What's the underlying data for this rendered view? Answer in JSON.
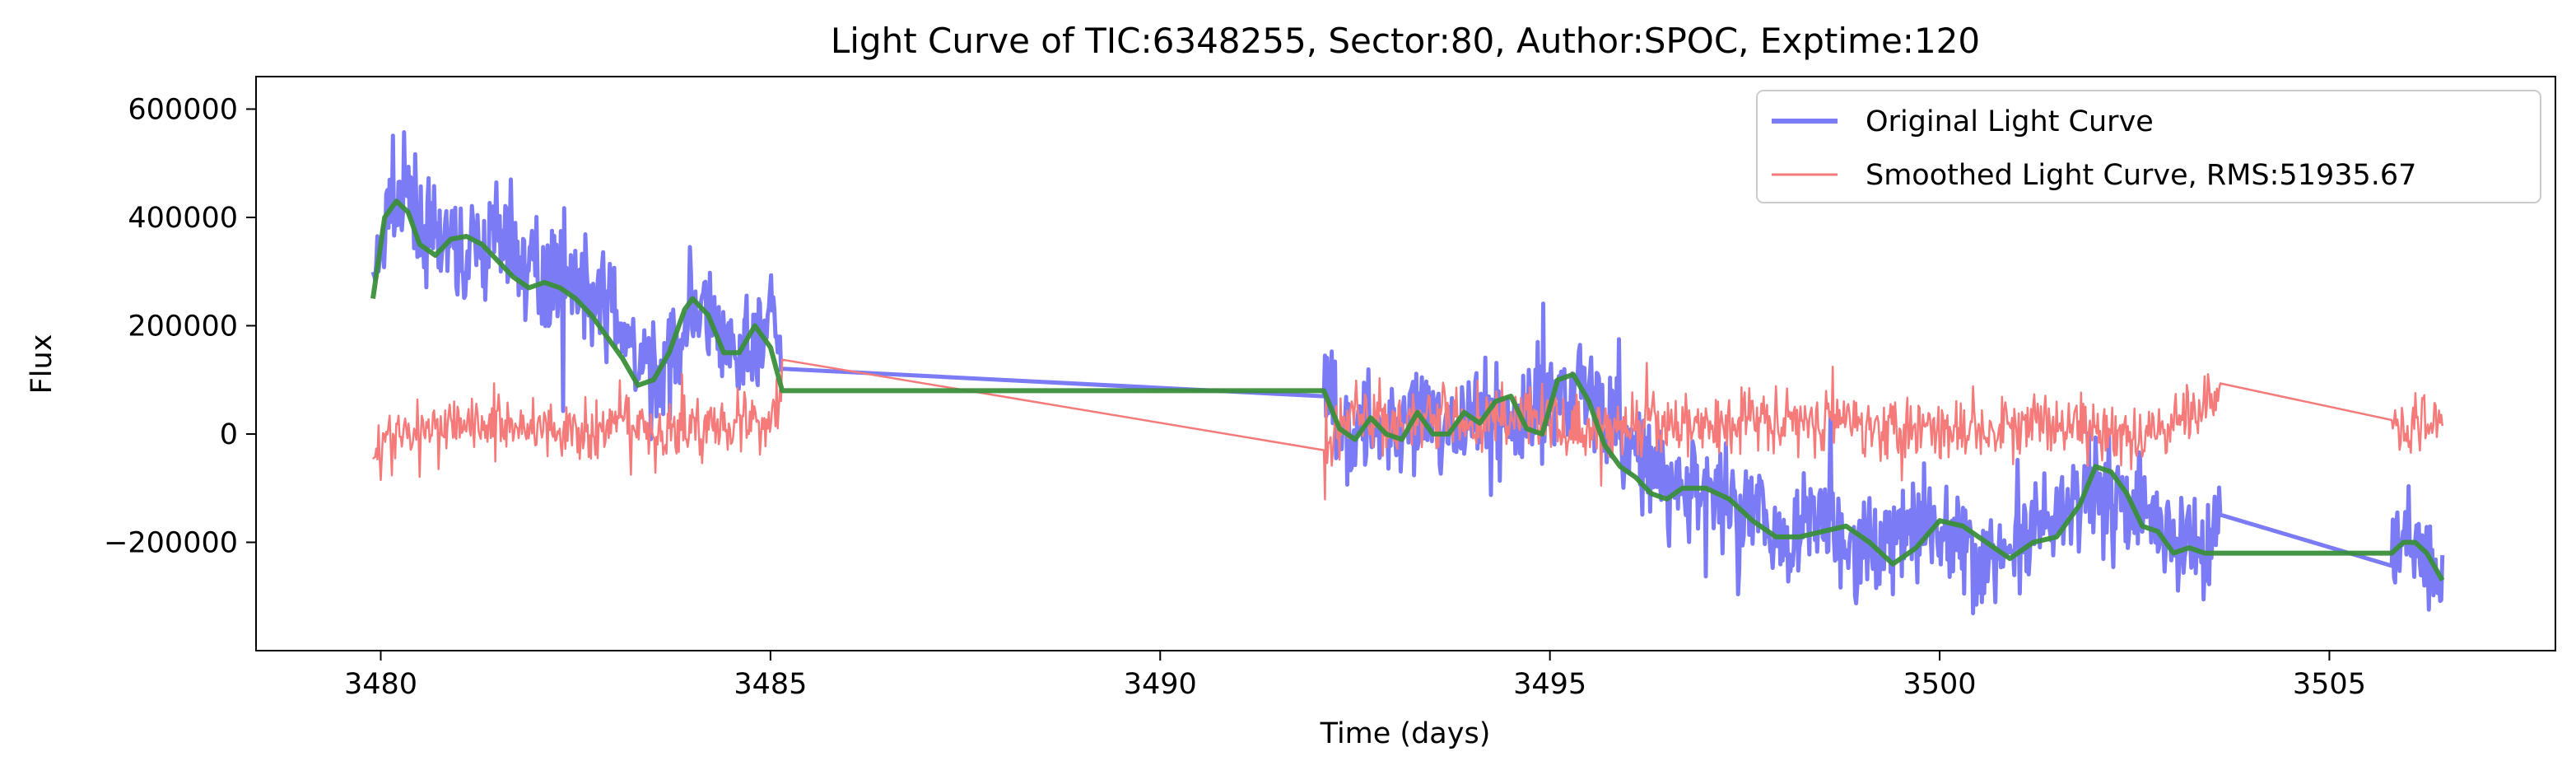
{
  "chart_data": {
    "type": "line",
    "title": "Light Curve of TIC:6348255, Sector:80, Author:SPOC, Exptime:120",
    "xlabel": "Time (days)",
    "ylabel": "Flux",
    "xlim": [
      3478.4,
      3507.9
    ],
    "ylim": [
      -400000,
      660000
    ],
    "x_ticks": [
      3480,
      3485,
      3490,
      3495,
      3500,
      3505
    ],
    "y_ticks": [
      -200000,
      0,
      200000,
      400000,
      600000
    ],
    "y_tick_labels": [
      "−200000",
      "0",
      "200000",
      "400000",
      "600000"
    ],
    "grid": false,
    "legend_position": "top-right",
    "segments": [
      [
        3479.9,
        3485.15
      ],
      [
        3492.1,
        3503.6
      ],
      [
        3505.8,
        3506.45
      ]
    ],
    "series": [
      {
        "name": "Original Light Curve",
        "color": "#7b7bf5",
        "x": [
          3479.9,
          3480.1,
          3480.3,
          3480.6,
          3481.0,
          3481.5,
          3482.0,
          3482.5,
          3483.0,
          3483.3,
          3483.6,
          3484.0,
          3484.3,
          3484.6,
          3485.0,
          3485.15,
          3492.1,
          3492.5,
          3493.0,
          3493.5,
          3494.0,
          3494.5,
          3495.0,
          3495.4,
          3495.8,
          3496.2,
          3496.6,
          3497.0,
          3497.5,
          3498.0,
          3498.5,
          3499.0,
          3499.5,
          3500.0,
          3500.5,
          3501.0,
          3501.5,
          3502.0,
          3502.3,
          3502.6,
          3503.0,
          3503.4,
          3503.6,
          3505.8,
          3506.1,
          3506.45
        ],
        "y": [
          250000,
          420000,
          430000,
          370000,
          330000,
          360000,
          300000,
          280000,
          230000,
          120000,
          100000,
          240000,
          180000,
          130000,
          190000,
          180000,
          80000,
          0,
          30000,
          10000,
          30000,
          20000,
          60000,
          110000,
          10000,
          -70000,
          -100000,
          -100000,
          -140000,
          -190000,
          -160000,
          -230000,
          -180000,
          -160000,
          -230000,
          -210000,
          -170000,
          -80000,
          -120000,
          -140000,
          -200000,
          -220000,
          -130000,
          -200000,
          -200000,
          -270000
        ],
        "noise": 90000
      },
      {
        "name": "Smoothed Light Curve, RMS:51935.67",
        "color": "#f57b7b",
        "x": [
          3479.9,
          3480.5,
          3481.0,
          3481.5,
          3482.0,
          3482.5,
          3483.0,
          3483.5,
          3484.0,
          3484.5,
          3485.0,
          3485.15,
          3492.1,
          3492.5,
          3493.0,
          3493.5,
          3494.0,
          3494.5,
          3495.0,
          3495.5,
          3496.0,
          3497.0,
          3498.0,
          3499.0,
          3500.0,
          3501.0,
          3502.0,
          3502.5,
          3503.0,
          3503.6,
          3505.8,
          3506.45
        ],
        "y": [
          -20000,
          0,
          30000,
          10000,
          20000,
          0,
          10000,
          0,
          10000,
          30000,
          20000,
          100000,
          -10000,
          40000,
          20000,
          30000,
          20000,
          40000,
          30000,
          0,
          10000,
          20000,
          30000,
          20000,
          10000,
          20000,
          10000,
          -20000,
          30000,
          80000,
          20000,
          20000
        ],
        "noise": 55000
      },
      {
        "color": "#3a8f3a",
        "x": [
          3479.9,
          3480.05,
          3480.2,
          3480.35,
          3480.5,
          3480.7,
          3480.9,
          3481.1,
          3481.3,
          3481.5,
          3481.7,
          3481.9,
          3482.1,
          3482.3,
          3482.5,
          3482.7,
          3482.9,
          3483.1,
          3483.3,
          3483.5,
          3483.7,
          3483.9,
          3484.0,
          3484.2,
          3484.4,
          3484.6,
          3484.8,
          3485.0,
          3485.15,
          3492.1,
          3492.3,
          3492.5,
          3492.7,
          3492.9,
          3493.1,
          3493.3,
          3493.5,
          3493.7,
          3493.9,
          3494.1,
          3494.3,
          3494.5,
          3494.7,
          3494.9,
          3495.1,
          3495.3,
          3495.5,
          3495.7,
          3495.9,
          3496.1,
          3496.3,
          3496.5,
          3496.7,
          3497.0,
          3497.3,
          3497.6,
          3497.9,
          3498.2,
          3498.5,
          3498.8,
          3499.1,
          3499.4,
          3499.7,
          3500.0,
          3500.3,
          3500.6,
          3500.9,
          3501.2,
          3501.5,
          3501.8,
          3502.0,
          3502.2,
          3502.4,
          3502.6,
          3502.8,
          3503.0,
          3503.2,
          3503.4,
          3503.6,
          3505.8,
          3505.95,
          3506.1,
          3506.25,
          3506.45
        ],
        "y": [
          250000,
          400000,
          430000,
          410000,
          350000,
          330000,
          360000,
          365000,
          350000,
          320000,
          290000,
          270000,
          280000,
          270000,
          250000,
          220000,
          180000,
          140000,
          90000,
          100000,
          150000,
          230000,
          250000,
          220000,
          150000,
          150000,
          200000,
          160000,
          80000,
          80000,
          10000,
          -10000,
          30000,
          0,
          -10000,
          40000,
          0,
          0,
          40000,
          20000,
          60000,
          70000,
          10000,
          0,
          100000,
          110000,
          60000,
          -20000,
          -60000,
          -80000,
          -110000,
          -120000,
          -100000,
          -100000,
          -120000,
          -160000,
          -190000,
          -190000,
          -180000,
          -170000,
          -200000,
          -240000,
          -210000,
          -160000,
          -170000,
          -200000,
          -230000,
          -200000,
          -190000,
          -130000,
          -60000,
          -70000,
          -110000,
          -170000,
          -180000,
          -220000,
          -210000,
          -220000,
          -220000,
          -220000,
          -200000,
          -200000,
          -220000,
          -270000
        ]
      }
    ]
  }
}
